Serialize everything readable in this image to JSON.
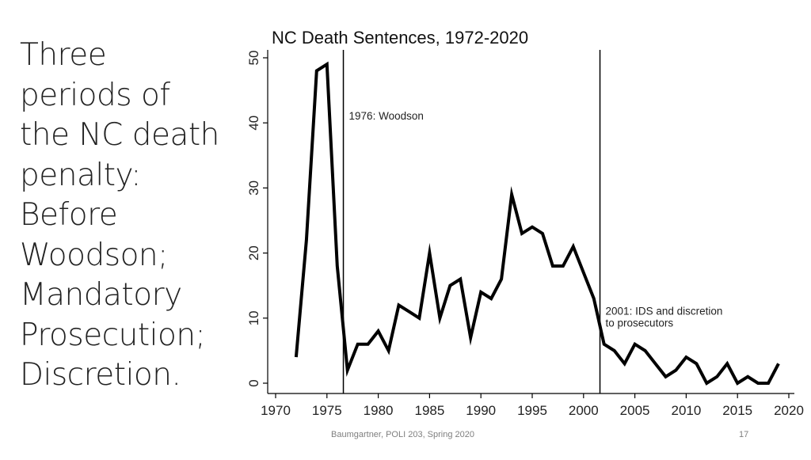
{
  "slide": {
    "body_lines": [
      "Three",
      "periods of",
      "the NC death",
      "penalty:",
      "Before",
      "Woodson;",
      "Mandatory",
      "Prosecution;",
      "Discretion."
    ],
    "footer_left": "Baumgartner, POLI 203, Spring 2020",
    "page_number": "17"
  },
  "chart_data": {
    "type": "line",
    "title": "NC Death Sentences, 1972-2020",
    "xlabel": "",
    "ylabel": "",
    "xlim": [
      1970,
      2020
    ],
    "ylim": [
      0,
      50
    ],
    "x_ticks": [
      1970,
      1975,
      1980,
      1985,
      1990,
      1995,
      2000,
      2005,
      2010,
      2015,
      2020
    ],
    "y_ticks": [
      0,
      10,
      20,
      30,
      40,
      50
    ],
    "grid": false,
    "series": [
      {
        "x": [
          1972,
          1973,
          1974,
          1975,
          1976,
          1977,
          1978,
          1979,
          1980,
          1981,
          1982,
          1983,
          1984,
          1985,
          1986,
          1987,
          1988,
          1989,
          1990,
          1991,
          1992,
          1993,
          1994,
          1995,
          1996,
          1997,
          1998,
          1999,
          2000,
          2001,
          2002,
          2003,
          2004,
          2005,
          2006,
          2007,
          2008,
          2009,
          2010,
          2011,
          2012,
          2013,
          2014,
          2015,
          2016,
          2017,
          2018,
          2019
        ],
        "values": [
          4,
          22,
          48,
          49,
          18,
          2,
          6,
          6,
          8,
          5,
          12,
          11,
          10,
          20,
          10,
          15,
          16,
          7,
          14,
          13,
          16,
          29,
          23,
          24,
          23,
          18,
          18,
          21,
          17,
          13,
          6,
          5,
          3,
          6,
          5,
          3,
          1,
          2,
          4,
          3,
          0,
          1,
          3,
          0,
          1,
          0,
          0,
          3
        ]
      }
    ],
    "reference_lines": [
      {
        "x": 1976.6,
        "label_lines": [
          "1976: Woodson"
        ],
        "label_y": 40.5
      },
      {
        "x": 2001.6,
        "label_lines": [
          "2001: IDS and discretion",
          "to prosecutors"
        ],
        "label_y": 10.5
      }
    ],
    "colors": {
      "line": "#000000",
      "text": "#222222",
      "title": "#111111"
    }
  }
}
